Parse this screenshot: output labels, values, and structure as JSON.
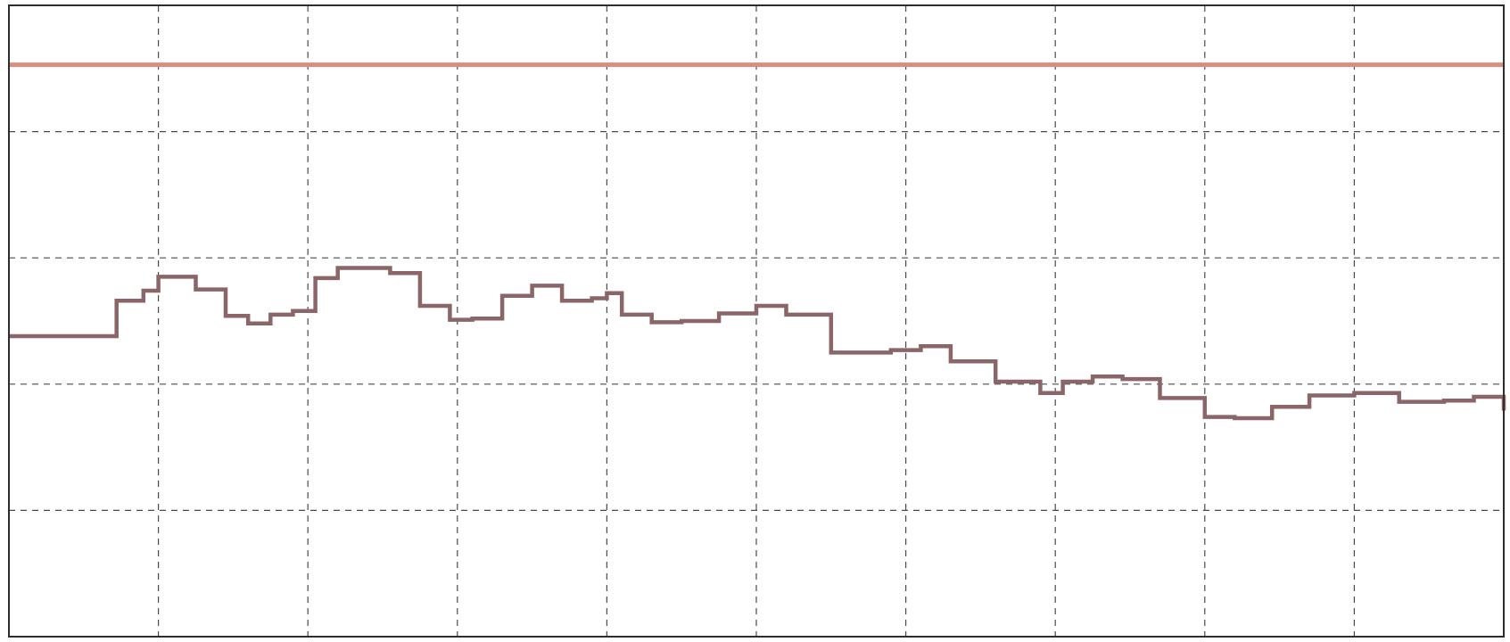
{
  "chart_data": {
    "type": "line",
    "title": "",
    "xlabel": "",
    "ylabel": "",
    "xlim": [
      0,
      10
    ],
    "ylim": [
      0,
      5
    ],
    "grid": true,
    "grid_style": "dashed",
    "legend": "none",
    "series": [
      {
        "color": "#d98d80",
        "style": "flat",
        "x": [
          0,
          10
        ],
        "y": [
          4.53,
          4.53
        ]
      },
      {
        "color": "#8a6669",
        "style": "stepped",
        "x": [
          0.0,
          0.25,
          0.55,
          0.72,
          0.9,
          1.0,
          1.08,
          1.25,
          1.45,
          1.6,
          1.75,
          1.9,
          2.05,
          2.2,
          2.4,
          2.55,
          2.75,
          2.95,
          3.1,
          3.3,
          3.5,
          3.7,
          3.9,
          4.0,
          4.1,
          4.3,
          4.5,
          4.75,
          5.0,
          5.2,
          5.5,
          5.75,
          5.9,
          6.1,
          6.3,
          6.6,
          6.9,
          7.05,
          7.25,
          7.45,
          7.7,
          8.0,
          8.2,
          8.45,
          8.7,
          9.0,
          9.3,
          9.6,
          9.8,
          10.0
        ],
        "y": [
          2.38,
          2.38,
          2.38,
          2.66,
          2.74,
          2.85,
          2.85,
          2.75,
          2.54,
          2.48,
          2.55,
          2.58,
          2.84,
          2.92,
          2.92,
          2.88,
          2.62,
          2.51,
          2.52,
          2.7,
          2.78,
          2.66,
          2.68,
          2.72,
          2.55,
          2.49,
          2.5,
          2.56,
          2.62,
          2.55,
          2.25,
          2.25,
          2.27,
          2.3,
          2.18,
          2.02,
          1.93,
          2.02,
          2.06,
          2.04,
          1.89,
          1.74,
          1.73,
          1.82,
          1.91,
          1.93,
          1.86,
          1.87,
          1.9,
          1.79
        ]
      }
    ]
  }
}
